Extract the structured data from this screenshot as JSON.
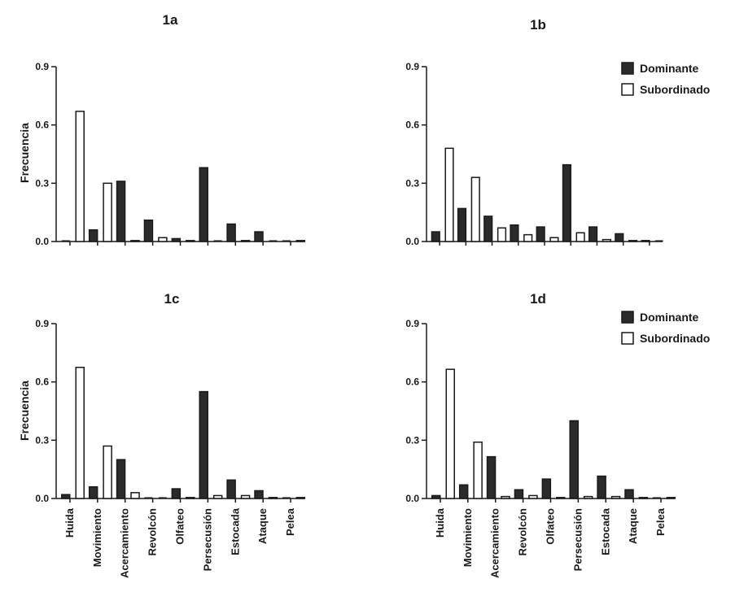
{
  "chart_data": [
    {
      "type": "bar",
      "title": "1a",
      "ylabel": "Frecuencia",
      "ylim": [
        0,
        0.9
      ],
      "yticks": [
        "0.0",
        "0.3",
        "0.6",
        "0.9"
      ],
      "categories": [
        "Huida",
        "Movimiento",
        "Acercamiento",
        "Revolcón",
        "Olfateo",
        "Persecusión",
        "Estocada",
        "Ataque",
        "Pelea"
      ],
      "show_category_labels": false,
      "legend": null,
      "series": [
        {
          "name": "Dominante",
          "color": "#2b2b2b",
          "values": [
            0.0,
            0.06,
            0.31,
            0.11,
            0.015,
            0.38,
            0.09,
            0.05,
            0.0
          ]
        },
        {
          "name": "Subordinado",
          "color": "#ffffff",
          "values": [
            0.67,
            0.3,
            0.005,
            0.02,
            0.005,
            0.0,
            0.005,
            0.0,
            0.005
          ]
        }
      ]
    },
    {
      "type": "bar",
      "title": "1b",
      "ylabel": "",
      "ylim": [
        0,
        0.9
      ],
      "yticks": [
        "0.0",
        "0.3",
        "0.6",
        "0.9"
      ],
      "categories": [
        "Huida",
        "Movimiento",
        "Acercamiento",
        "Revolcón",
        "Olfateo",
        "Persecusión",
        "Estocada",
        "Ataque",
        "Pelea"
      ],
      "show_category_labels": false,
      "legend": "top-right",
      "series": [
        {
          "name": "Dominante",
          "color": "#2b2b2b",
          "values": [
            0.05,
            0.17,
            0.13,
            0.085,
            0.075,
            0.395,
            0.075,
            0.04,
            0.005
          ]
        },
        {
          "name": "Subordinado",
          "color": "#ffffff",
          "values": [
            0.48,
            0.33,
            0.07,
            0.035,
            0.02,
            0.045,
            0.01,
            0.005,
            0.0
          ]
        }
      ]
    },
    {
      "type": "bar",
      "title": "1c",
      "ylabel": "Frecuencia",
      "ylim": [
        0,
        0.9
      ],
      "yticks": [
        "0.0",
        "0.3",
        "0.6",
        "0.9"
      ],
      "categories": [
        "Huida",
        "Movimiento",
        "Acercamiento",
        "Revolcón",
        "Olfateo",
        "Persecusión",
        "Estocada",
        "Ataque",
        "Pelea"
      ],
      "show_category_labels": true,
      "legend": null,
      "series": [
        {
          "name": "Dominante",
          "color": "#2b2b2b",
          "values": [
            0.02,
            0.06,
            0.2,
            0.0,
            0.05,
            0.55,
            0.095,
            0.04,
            0.0
          ]
        },
        {
          "name": "Subordinado",
          "color": "#ffffff",
          "values": [
            0.675,
            0.27,
            0.03,
            0.0,
            0.005,
            0.015,
            0.015,
            0.005,
            0.005
          ]
        }
      ]
    },
    {
      "type": "bar",
      "title": "1d",
      "ylabel": "",
      "ylim": [
        0,
        0.9
      ],
      "yticks": [
        "0.0",
        "0.3",
        "0.6",
        "0.9"
      ],
      "categories": [
        "Huida",
        "Movimiento",
        "Acercamiento",
        "Revolcón",
        "Olfateo",
        "Persecusión",
        "Estocada",
        "Ataque",
        "Pelea"
      ],
      "show_category_labels": true,
      "legend": "top-right",
      "series": [
        {
          "name": "Dominante",
          "color": "#2b2b2b",
          "values": [
            0.015,
            0.07,
            0.215,
            0.045,
            0.1,
            0.4,
            0.115,
            0.045,
            0.0
          ]
        },
        {
          "name": "Subordinado",
          "color": "#ffffff",
          "values": [
            0.665,
            0.29,
            0.01,
            0.015,
            0.005,
            0.01,
            0.01,
            0.005,
            0.005
          ]
        }
      ]
    }
  ]
}
